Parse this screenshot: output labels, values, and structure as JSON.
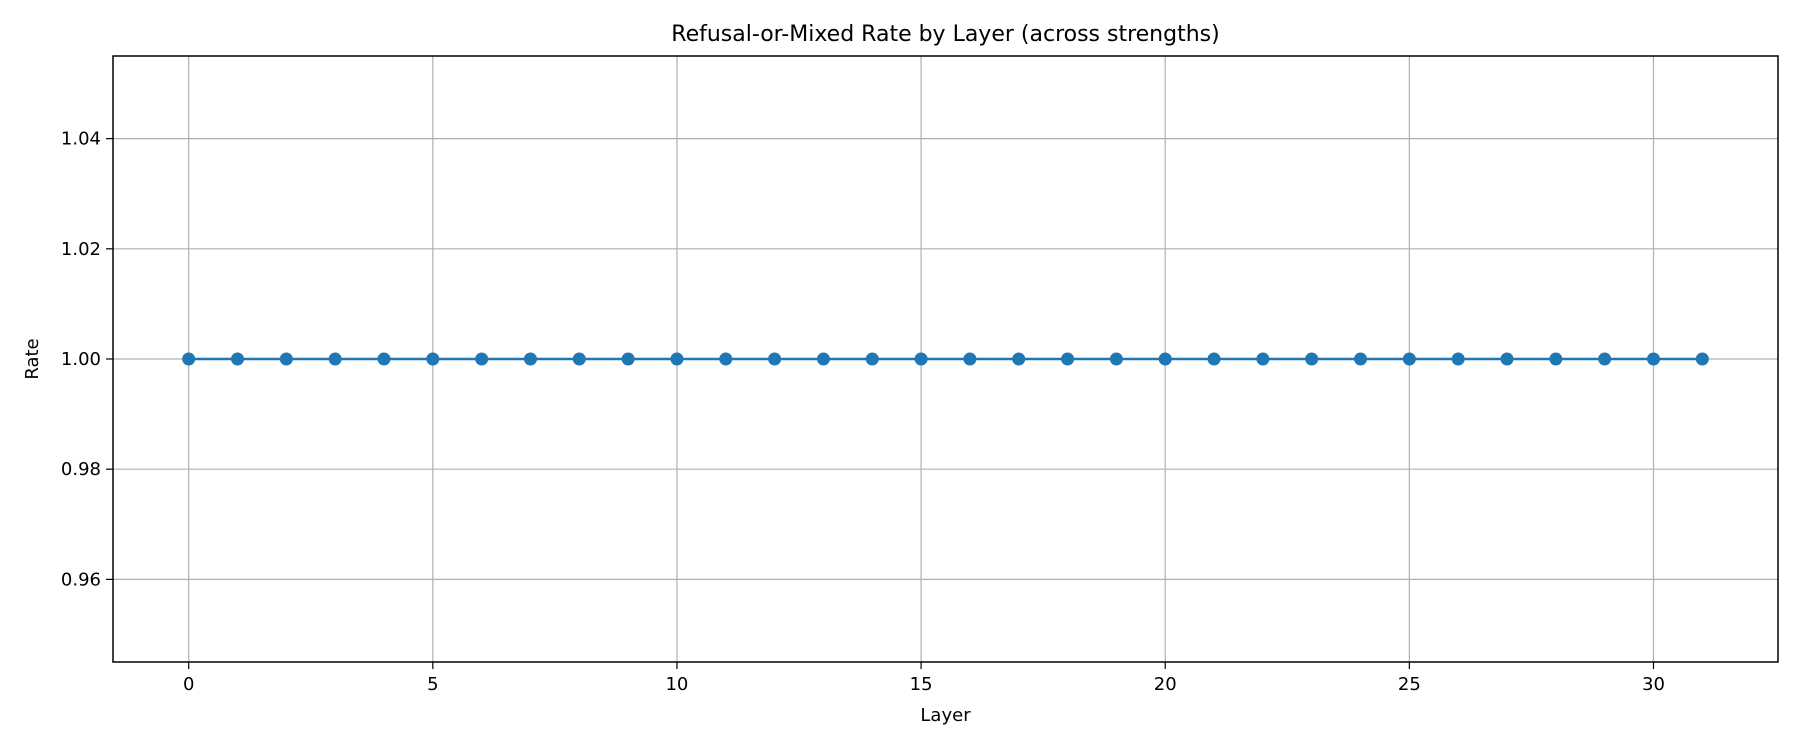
{
  "chart_data": {
    "type": "line",
    "title": "Refusal-or-Mixed Rate by Layer (across strengths)",
    "xlabel": "Layer",
    "ylabel": "Rate",
    "xlim": [
      -1.55,
      32.55
    ],
    "ylim": [
      0.945,
      1.055
    ],
    "grid": true,
    "x_ticks": [
      0,
      5,
      10,
      15,
      20,
      25,
      30
    ],
    "x_tick_labels": [
      "0",
      "5",
      "10",
      "15",
      "20",
      "25",
      "30"
    ],
    "y_ticks": [
      0.96,
      0.98,
      1.0,
      1.02,
      1.04
    ],
    "y_tick_labels": [
      "0.96",
      "0.98",
      "1.00",
      "1.02",
      "1.04"
    ],
    "series": [
      {
        "name": "Refusal-or-Mixed Rate",
        "color": "#1f77b4",
        "marker": "circle",
        "x": [
          0,
          1,
          2,
          3,
          4,
          5,
          6,
          7,
          8,
          9,
          10,
          11,
          12,
          13,
          14,
          15,
          16,
          17,
          18,
          19,
          20,
          21,
          22,
          23,
          24,
          25,
          26,
          27,
          28,
          29,
          30,
          31
        ],
        "values": [
          1,
          1,
          1,
          1,
          1,
          1,
          1,
          1,
          1,
          1,
          1,
          1,
          1,
          1,
          1,
          1,
          1,
          1,
          1,
          1,
          1,
          1,
          1,
          1,
          1,
          1,
          1,
          1,
          1,
          1,
          1,
          1
        ]
      }
    ]
  }
}
